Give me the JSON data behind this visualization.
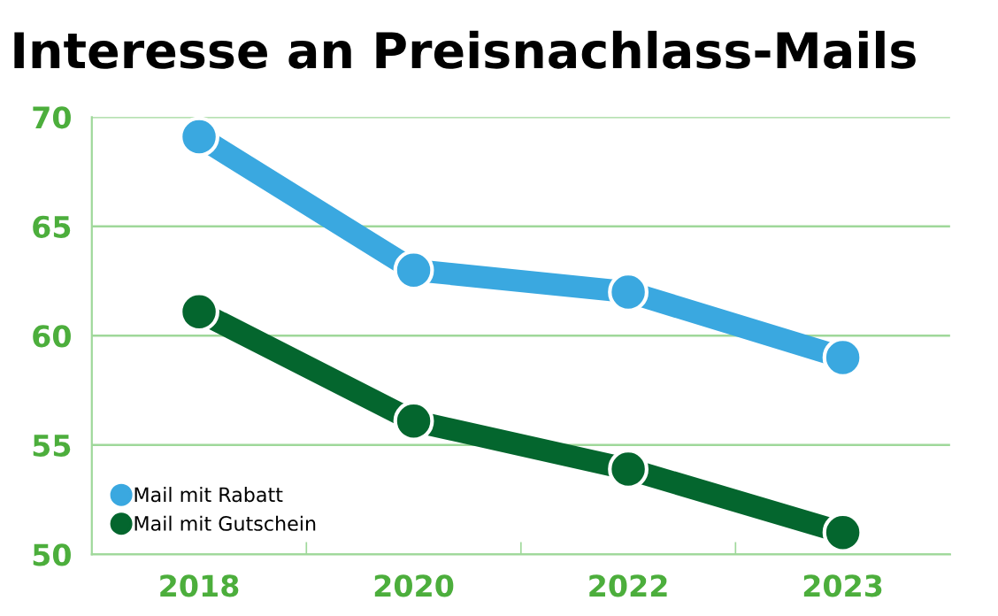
{
  "chart_data": {
    "type": "line",
    "title": "Interesse an Preisnachlass-Mails",
    "categories": [
      "2018",
      "2020",
      "2022",
      "2023"
    ],
    "series": [
      {
        "name": "Mail mit Rabatt",
        "color": "#3aa8e0",
        "values": [
          69.1,
          63.0,
          62.0,
          59.0
        ]
      },
      {
        "name": "Mail mit Gutschein",
        "color": "#04662e",
        "values": [
          61.1,
          56.1,
          53.9,
          51.0
        ]
      }
    ],
    "ylim": [
      50,
      70
    ],
    "yticks": [
      50,
      55,
      60,
      65,
      70
    ],
    "grid": "y",
    "legend": "bottom left",
    "marker": "circle",
    "line_style": "solid"
  }
}
